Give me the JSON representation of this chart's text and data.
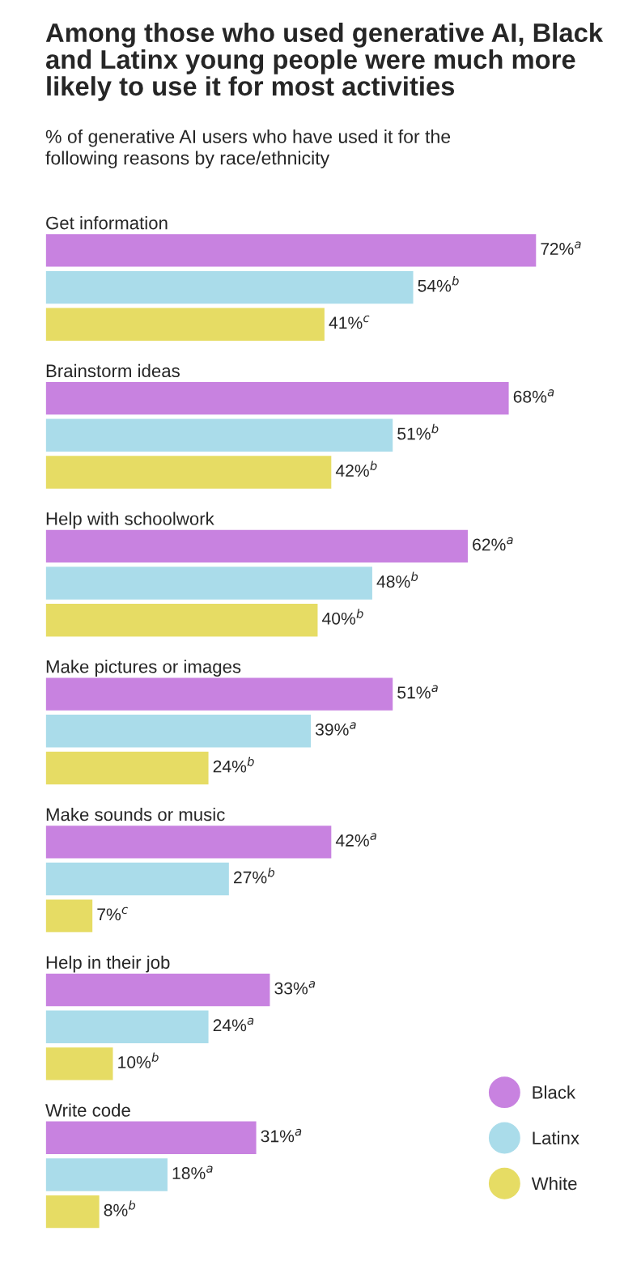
{
  "chart_data": {
    "type": "bar",
    "orientation": "horizontal",
    "title": "Among those who used generative AI, Black and Latinx young people were much more likely to use it for most activities",
    "subtitle": "% of generative AI users who have used it for the following reasons by race/ethnicity",
    "categories": [
      "Get information",
      "Brainstorm ideas",
      "Help with schoolwork",
      "Make pictures or images",
      "Make sounds or music",
      "Help in their job",
      "Write code"
    ],
    "series": [
      {
        "name": "Black",
        "color": "#c882e0",
        "values": [
          72,
          68,
          62,
          51,
          42,
          33,
          31
        ],
        "value_labels": [
          "72%$^{a}$",
          "68%$^{a}$",
          "62%$^{a}$",
          "51%$^{a}$",
          "42%$^{a}$",
          "33%$^{a}$",
          "31%$^{a}$"
        ]
      },
      {
        "name": "Latinx",
        "color": "#aadcea",
        "values": [
          54,
          51,
          48,
          39,
          27,
          24,
          18
        ],
        "value_labels": [
          "54%$^{b}$",
          "51%$^{b}$",
          "48%$^{b}$",
          "39%$^{a}$",
          "27%$^{b}$",
          "24%$^{a}$",
          "18%$^{a}$"
        ]
      },
      {
        "name": "White",
        "color": "#e6dc64",
        "values": [
          41,
          42,
          40,
          24,
          7,
          10,
          8
        ],
        "value_labels": [
          "41%$^{c}$",
          "42%$^{b}$",
          "40%$^{b}$",
          "24%$^{b}$",
          "7%$^{c}$",
          "10%$^{b}$",
          "8%$^{b}$"
        ]
      }
    ],
    "legend": "bottom right"
  }
}
